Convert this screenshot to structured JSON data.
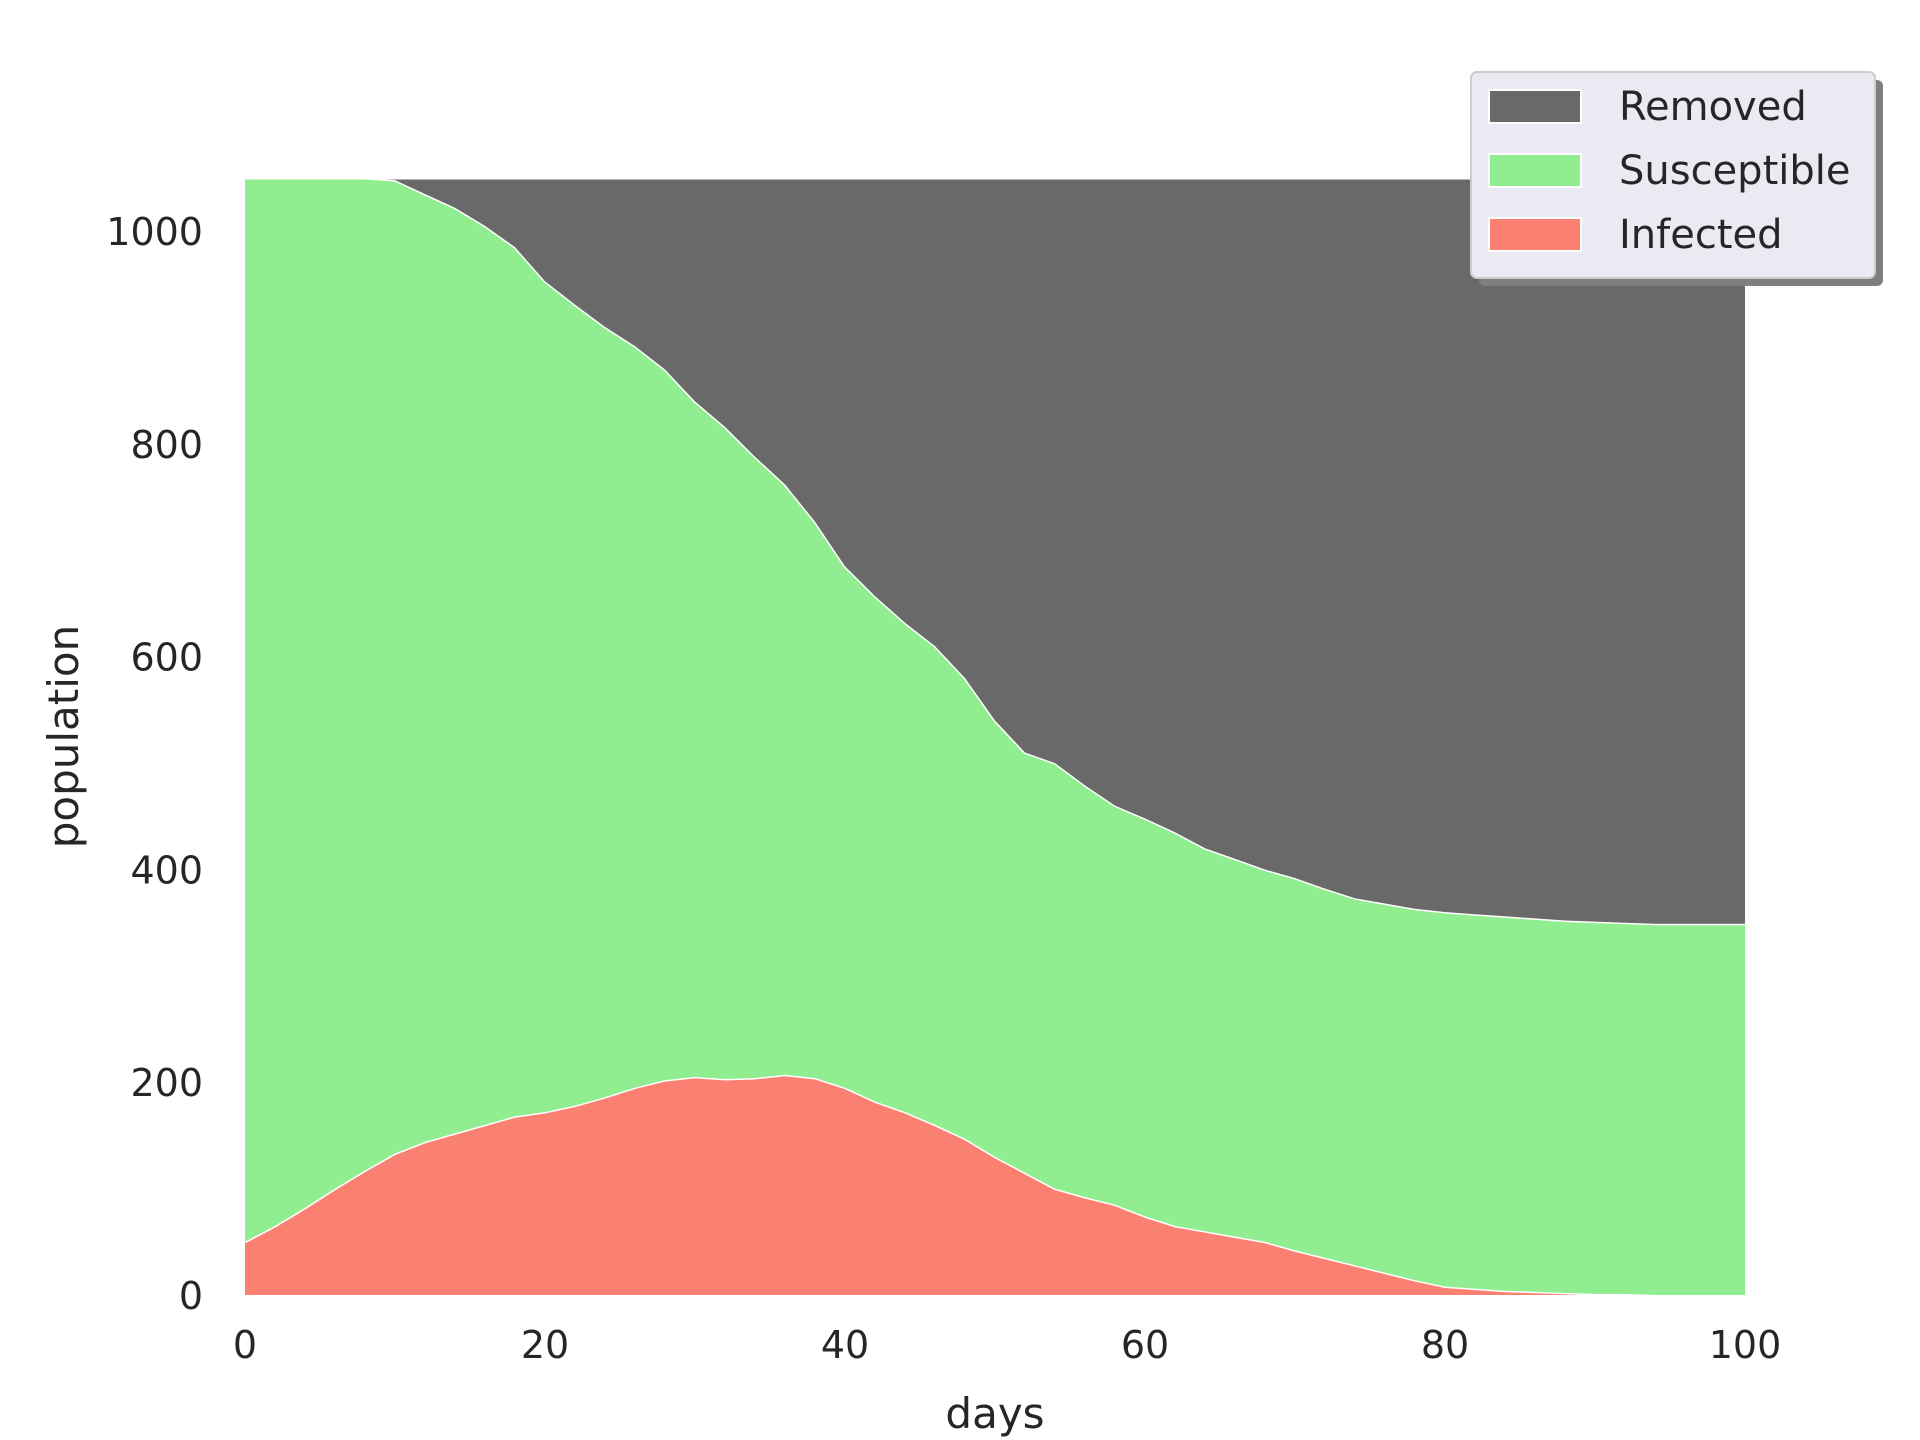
{
  "chart_data": {
    "type": "area",
    "stacked": true,
    "xlabel": "days",
    "ylabel": "population",
    "xlim": [
      0,
      100
    ],
    "ylim": [
      0,
      1050
    ],
    "total": 1050,
    "x_ticks": [
      0,
      20,
      40,
      60,
      80,
      100
    ],
    "y_ticks": [
      0,
      200,
      400,
      600,
      800,
      1000
    ],
    "grid": false,
    "legend_position": "top-right",
    "x": [
      0,
      2,
      4,
      6,
      8,
      10,
      12,
      14,
      16,
      18,
      20,
      22,
      24,
      26,
      28,
      30,
      32,
      34,
      36,
      38,
      40,
      42,
      44,
      46,
      48,
      50,
      52,
      54,
      56,
      58,
      60,
      62,
      64,
      66,
      68,
      70,
      72,
      74,
      76,
      78,
      80,
      82,
      84,
      86,
      88,
      90,
      92,
      94,
      96,
      98,
      100
    ],
    "series": [
      {
        "name": "Infected",
        "color": "#fa8072",
        "values": [
          50,
          65,
          82,
          100,
          117,
          133,
          144,
          152,
          160,
          168,
          172,
          178,
          186,
          195,
          202,
          205,
          203,
          204,
          207,
          204,
          195,
          182,
          172,
          160,
          147,
          130,
          115,
          100,
          92,
          85,
          74,
          65,
          60,
          55,
          50,
          42,
          35,
          28,
          21,
          14,
          8,
          6,
          4,
          3,
          2,
          1,
          1,
          0,
          0,
          0,
          0
        ]
      },
      {
        "name": "Susceptible",
        "color": "#90ee90",
        "values": [
          1000,
          985,
          968,
          950,
          933,
          915,
          891,
          870,
          845,
          817,
          781,
          753,
          724,
          697,
          668,
          635,
          613,
          584,
          555,
          523,
          490,
          475,
          460,
          450,
          433,
          410,
          395,
          400,
          387,
          375,
          374,
          370,
          360,
          355,
          350,
          350,
          347,
          345,
          347,
          349,
          352,
          352,
          352,
          351,
          350,
          350,
          349,
          349,
          349,
          349,
          349
        ]
      },
      {
        "name": "Removed",
        "color": "#696969",
        "values": [
          0,
          0,
          0,
          0,
          0,
          2,
          15,
          28,
          45,
          65,
          97,
          119,
          140,
          158,
          180,
          210,
          234,
          262,
          288,
          323,
          365,
          393,
          418,
          440,
          470,
          510,
          540,
          550,
          571,
          590,
          602,
          615,
          630,
          640,
          650,
          658,
          668,
          677,
          682,
          687,
          690,
          692,
          694,
          696,
          698,
          699,
          700,
          701,
          701,
          701,
          701
        ]
      }
    ],
    "legend": [
      "Removed",
      "Susceptible",
      "Infected"
    ]
  }
}
